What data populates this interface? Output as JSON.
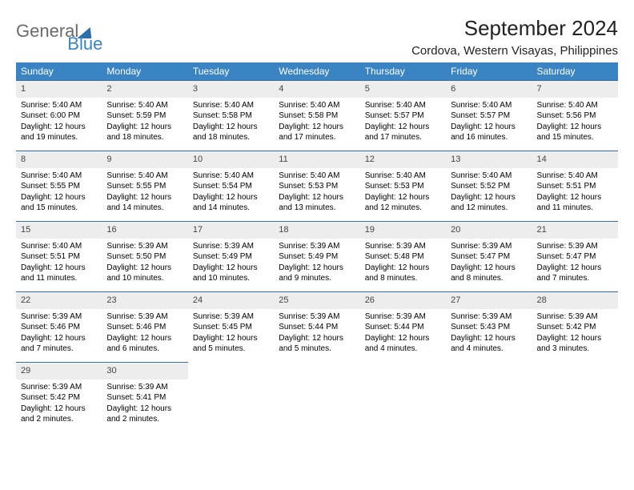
{
  "brand": {
    "word1": "General",
    "word2": "Blue"
  },
  "title": "September 2024",
  "location": "Cordova, Western Visayas, Philippines",
  "colors": {
    "header_bg": "#3a84c4",
    "header_text": "#ffffff",
    "daynum_bg": "#ededed",
    "row_border": "#3a6d9a",
    "logo_gray": "#6a6a6a",
    "logo_blue": "#3a84c4"
  },
  "weekdays": [
    "Sunday",
    "Monday",
    "Tuesday",
    "Wednesday",
    "Thursday",
    "Friday",
    "Saturday"
  ],
  "weeks": [
    [
      {
        "n": "1",
        "sr": "5:40 AM",
        "ss": "6:00 PM",
        "dl": "12 hours and 19 minutes."
      },
      {
        "n": "2",
        "sr": "5:40 AM",
        "ss": "5:59 PM",
        "dl": "12 hours and 18 minutes."
      },
      {
        "n": "3",
        "sr": "5:40 AM",
        "ss": "5:58 PM",
        "dl": "12 hours and 18 minutes."
      },
      {
        "n": "4",
        "sr": "5:40 AM",
        "ss": "5:58 PM",
        "dl": "12 hours and 17 minutes."
      },
      {
        "n": "5",
        "sr": "5:40 AM",
        "ss": "5:57 PM",
        "dl": "12 hours and 17 minutes."
      },
      {
        "n": "6",
        "sr": "5:40 AM",
        "ss": "5:57 PM",
        "dl": "12 hours and 16 minutes."
      },
      {
        "n": "7",
        "sr": "5:40 AM",
        "ss": "5:56 PM",
        "dl": "12 hours and 15 minutes."
      }
    ],
    [
      {
        "n": "8",
        "sr": "5:40 AM",
        "ss": "5:55 PM",
        "dl": "12 hours and 15 minutes."
      },
      {
        "n": "9",
        "sr": "5:40 AM",
        "ss": "5:55 PM",
        "dl": "12 hours and 14 minutes."
      },
      {
        "n": "10",
        "sr": "5:40 AM",
        "ss": "5:54 PM",
        "dl": "12 hours and 14 minutes."
      },
      {
        "n": "11",
        "sr": "5:40 AM",
        "ss": "5:53 PM",
        "dl": "12 hours and 13 minutes."
      },
      {
        "n": "12",
        "sr": "5:40 AM",
        "ss": "5:53 PM",
        "dl": "12 hours and 12 minutes."
      },
      {
        "n": "13",
        "sr": "5:40 AM",
        "ss": "5:52 PM",
        "dl": "12 hours and 12 minutes."
      },
      {
        "n": "14",
        "sr": "5:40 AM",
        "ss": "5:51 PM",
        "dl": "12 hours and 11 minutes."
      }
    ],
    [
      {
        "n": "15",
        "sr": "5:40 AM",
        "ss": "5:51 PM",
        "dl": "12 hours and 11 minutes."
      },
      {
        "n": "16",
        "sr": "5:39 AM",
        "ss": "5:50 PM",
        "dl": "12 hours and 10 minutes."
      },
      {
        "n": "17",
        "sr": "5:39 AM",
        "ss": "5:49 PM",
        "dl": "12 hours and 10 minutes."
      },
      {
        "n": "18",
        "sr": "5:39 AM",
        "ss": "5:49 PM",
        "dl": "12 hours and 9 minutes."
      },
      {
        "n": "19",
        "sr": "5:39 AM",
        "ss": "5:48 PM",
        "dl": "12 hours and 8 minutes."
      },
      {
        "n": "20",
        "sr": "5:39 AM",
        "ss": "5:47 PM",
        "dl": "12 hours and 8 minutes."
      },
      {
        "n": "21",
        "sr": "5:39 AM",
        "ss": "5:47 PM",
        "dl": "12 hours and 7 minutes."
      }
    ],
    [
      {
        "n": "22",
        "sr": "5:39 AM",
        "ss": "5:46 PM",
        "dl": "12 hours and 7 minutes."
      },
      {
        "n": "23",
        "sr": "5:39 AM",
        "ss": "5:46 PM",
        "dl": "12 hours and 6 minutes."
      },
      {
        "n": "24",
        "sr": "5:39 AM",
        "ss": "5:45 PM",
        "dl": "12 hours and 5 minutes."
      },
      {
        "n": "25",
        "sr": "5:39 AM",
        "ss": "5:44 PM",
        "dl": "12 hours and 5 minutes."
      },
      {
        "n": "26",
        "sr": "5:39 AM",
        "ss": "5:44 PM",
        "dl": "12 hours and 4 minutes."
      },
      {
        "n": "27",
        "sr": "5:39 AM",
        "ss": "5:43 PM",
        "dl": "12 hours and 4 minutes."
      },
      {
        "n": "28",
        "sr": "5:39 AM",
        "ss": "5:42 PM",
        "dl": "12 hours and 3 minutes."
      }
    ],
    [
      {
        "n": "29",
        "sr": "5:39 AM",
        "ss": "5:42 PM",
        "dl": "12 hours and 2 minutes."
      },
      {
        "n": "30",
        "sr": "5:39 AM",
        "ss": "5:41 PM",
        "dl": "12 hours and 2 minutes."
      },
      null,
      null,
      null,
      null,
      null
    ]
  ],
  "labels": {
    "sunrise": "Sunrise: ",
    "sunset": "Sunset: ",
    "daylight": "Daylight: "
  }
}
